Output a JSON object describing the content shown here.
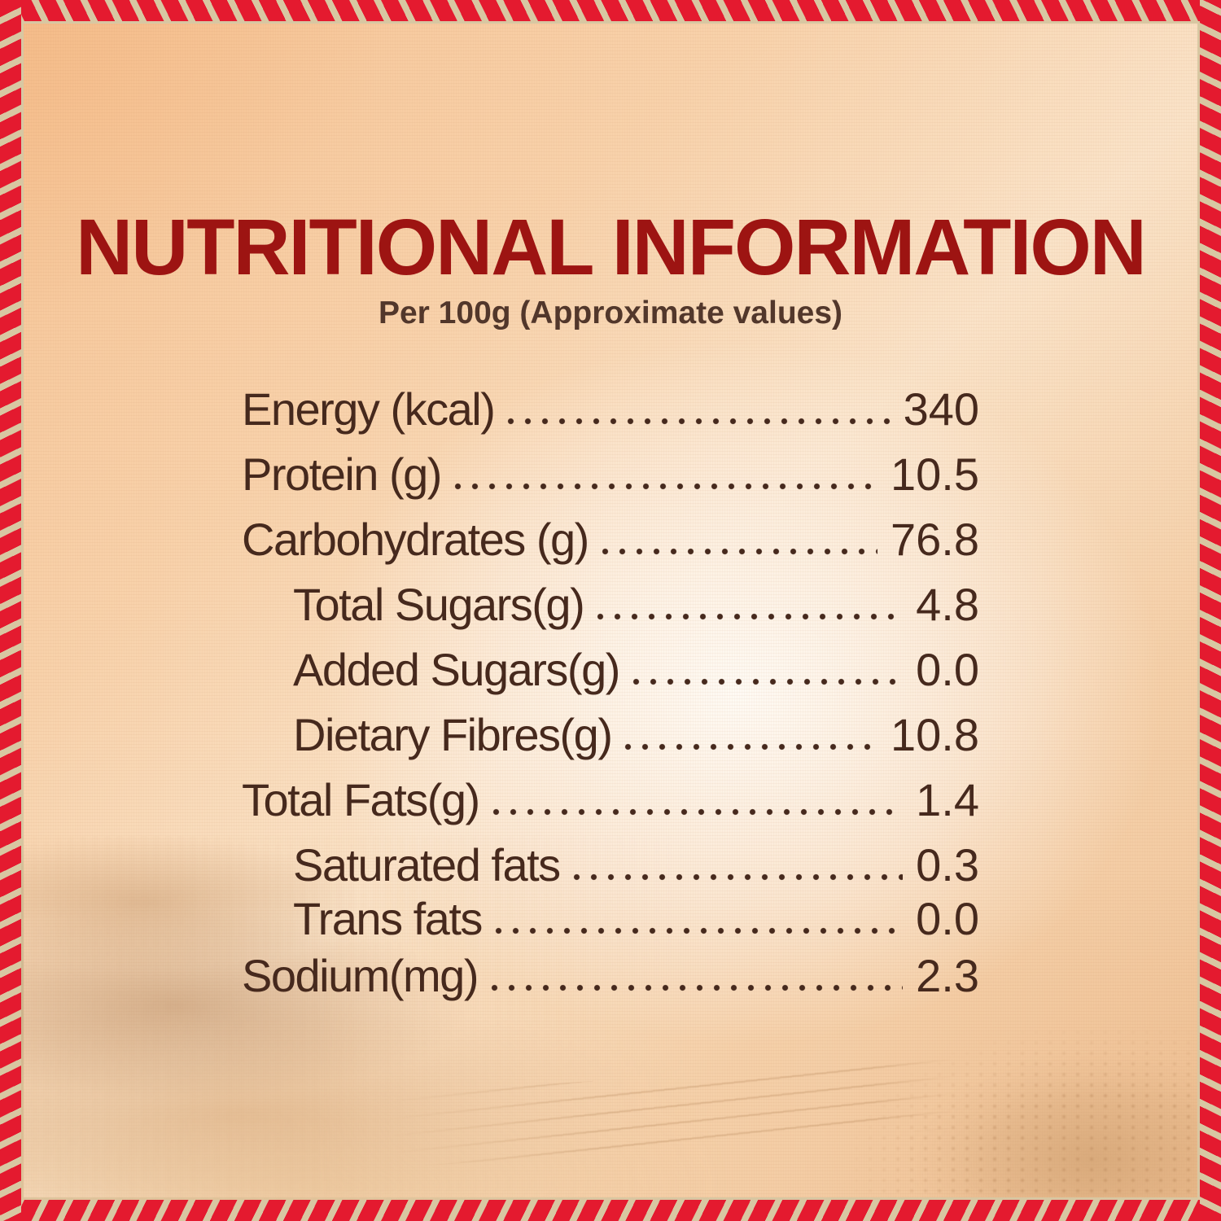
{
  "panel": {
    "title": "NUTRITIONAL INFORMATION",
    "subtitle": "Per 100g (Approximate values)",
    "nutrients": [
      {
        "label": "Energy (kcal)",
        "value": "340",
        "indent": false
      },
      {
        "label": "Protein (g)",
        "value": "10.5",
        "indent": false
      },
      {
        "label": "Carbohydrates (g)",
        "value": "76.8",
        "indent": false
      },
      {
        "label": "Total Sugars(g)",
        "value": "4.8",
        "indent": true
      },
      {
        "label": "Added Sugars(g)",
        "value": "0.0",
        "indent": true
      },
      {
        "label": "Dietary Fibres(g)",
        "value": "10.8",
        "indent": true
      },
      {
        "label": "Total Fats(g)",
        "value": "1.4",
        "indent": false
      },
      {
        "label": "Saturated fats",
        "value": "0.3",
        "indent": true
      },
      {
        "label": "Trans fats",
        "value": "0.0",
        "indent": true
      },
      {
        "label": "Sodium(mg)",
        "value": "2.3",
        "indent": false
      }
    ],
    "colors": {
      "title_red": "#9d1412",
      "text_brown": "#46291d",
      "subtitle_brown": "#52372b",
      "border_red": "#e41a2f",
      "stitch_cream": "#d8c7a2"
    },
    "decor_images": [
      "flour-mounds-watermark",
      "grain-pile-watermark",
      "grain-stalks-watermark"
    ]
  }
}
